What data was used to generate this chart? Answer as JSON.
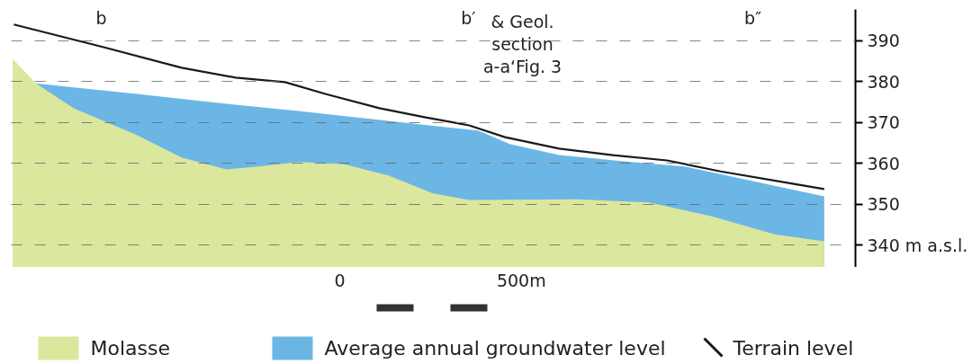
{
  "chart_data": {
    "type": "area",
    "xlim": [
      -905,
      1420
    ],
    "ylim": [
      334.5,
      397.7
    ],
    "xticks": [
      {
        "value": 0,
        "label": "0"
      },
      {
        "value": 500,
        "label": "500m"
      }
    ],
    "yticks": [
      {
        "value": 340,
        "label": "340 m a.s.l."
      },
      350,
      360,
      370,
      380,
      390
    ],
    "grid": "y",
    "legend": "bottom",
    "series": [
      {
        "name": "Molasse",
        "color": "#dbe79c",
        "x": [
          -901,
          -837,
          -733,
          -559,
          -436,
          -312,
          -225,
          -114,
          10,
          134,
          257,
          356,
          653,
          851,
          1025,
          1198,
          1334
        ],
        "values": [
          385.6,
          379.6,
          373.5,
          366.9,
          361.4,
          358.5,
          359.2,
          360.3,
          359.8,
          357,
          352.6,
          351,
          351.2,
          350.4,
          347,
          342.6,
          340.9
        ]
      },
      {
        "name": "Average annual groundwater level",
        "color": "#6cb6e6",
        "x": [
          -837,
          -733,
          -559,
          -436,
          -312,
          -225,
          -114,
          10,
          134,
          257,
          381,
          468,
          604,
          802,
          950,
          1198,
          1334
        ],
        "values": [
          379.6,
          378.6,
          377,
          375.8,
          374.6,
          373.8,
          372.8,
          371.6,
          370.4,
          369.2,
          368,
          364.7,
          362,
          360.3,
          359.2,
          354.5,
          351.9
        ]
      },
      {
        "name": "Terrain level",
        "type": "line",
        "color": "#1a1a1a",
        "x": [
          -898,
          -653,
          -436,
          -287,
          -151,
          -40,
          109,
          233,
          356,
          455,
          604,
          752,
          901,
          1049,
          1247,
          1334
        ],
        "values": [
          394,
          388.5,
          383.4,
          381,
          379.9,
          377,
          373.5,
          371.3,
          369.3,
          366.4,
          363.6,
          362,
          360.7,
          358,
          355,
          353.7
        ]
      }
    ],
    "annotations": [
      "b",
      "b′",
      "b″",
      "& Geol.\nsection\na-a‘Fig. 3"
    ]
  }
}
